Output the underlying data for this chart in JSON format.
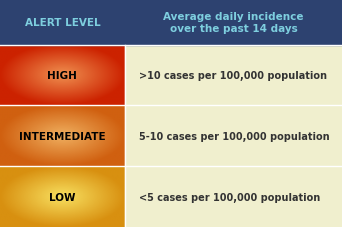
{
  "header_bg": "#2d4270",
  "header_left_text": "ALERT LEVEL",
  "header_right_text": "Average daily incidence\nover the past 14 days",
  "header_text_color": "#7ecfdf",
  "row_right_bg": "#f0efce",
  "rows": [
    {
      "label": "HIGH",
      "description": ">10 cases per 100,000 population",
      "color_center": "#f09050",
      "color_edge": "#cc2200"
    },
    {
      "label": "INTERMEDIATE",
      "description": "5-10 cases per 100,000 population",
      "color_center": "#f0b060",
      "color_edge": "#d06010"
    },
    {
      "label": "LOW",
      "description": "<5 cases per 100,000 population",
      "color_center": "#f8e060",
      "color_edge": "#d89010"
    }
  ],
  "figsize": [
    3.42,
    2.28
  ],
  "dpi": 100
}
